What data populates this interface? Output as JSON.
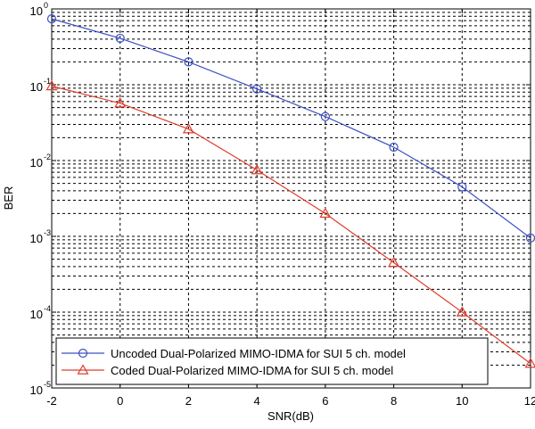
{
  "chart_data": {
    "type": "line",
    "y_scale": "log",
    "grid": true,
    "legend_position": "bottom-left",
    "xlabel": "SNR(dB)",
    "ylabel": "BER",
    "xlim": [
      -2,
      12
    ],
    "ylim": [
      1e-05,
      1
    ],
    "x_ticks": [
      -2,
      0,
      2,
      4,
      6,
      8,
      10,
      12
    ],
    "x_tick_labels": [
      "-2",
      "0",
      "2",
      "4",
      "6",
      "8",
      "10",
      "12"
    ],
    "y_tick_labels": [
      {
        "base": "10",
        "exp": "0",
        "value": 1
      },
      {
        "base": "10",
        "exp": "-1",
        "value": 0.1
      },
      {
        "base": "10",
        "exp": "-2",
        "value": 0.01
      },
      {
        "base": "10",
        "exp": "-3",
        "value": 0.001
      },
      {
        "base": "10",
        "exp": "-4",
        "value": 0.0001
      },
      {
        "base": "10",
        "exp": "-5",
        "value": 1e-05
      }
    ],
    "series": [
      {
        "name": "Uncoded Dual-Polarized MIMO-IDMA for SUI 5 ch. model",
        "color": "#3c4fc4",
        "marker": "circle",
        "x": [
          -2,
          0,
          2,
          4,
          6,
          8,
          10,
          12
        ],
        "y": [
          0.74,
          0.41,
          0.2,
          0.088,
          0.038,
          0.015,
          0.0045,
          0.00095
        ]
      },
      {
        "name": "Coded Dual-Polarized MIMO-IDMA for SUI 5 ch. model",
        "color": "#e03c2c",
        "marker": "triangle",
        "x": [
          -2,
          0,
          2,
          4,
          6,
          8,
          10,
          12
        ],
        "y": [
          0.096,
          0.057,
          0.026,
          0.0075,
          0.002,
          0.00045,
          0.0001,
          2.1e-05
        ]
      }
    ]
  }
}
